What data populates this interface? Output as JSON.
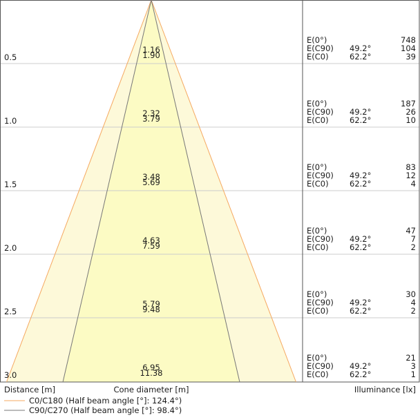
{
  "chart_data": {
    "type": "cone-diagram",
    "distances": [
      "0.5",
      "1.0",
      "1.5",
      "2.0",
      "2.5",
      "3.0"
    ],
    "cone_diameters": [
      {
        "c0": "1.16",
        "c90": "1.90"
      },
      {
        "c0": "2.32",
        "c90": "3.79"
      },
      {
        "c0": "3.48",
        "c90": "5.69"
      },
      {
        "c0": "4.63",
        "c90": "7.59"
      },
      {
        "c0": "5.79",
        "c90": "9.48"
      },
      {
        "c0": "6.95",
        "c90": "11.38"
      }
    ],
    "illuminance": [
      {
        "e0": "748",
        "e90": "104",
        "ec0": "39"
      },
      {
        "e0": "187",
        "e90": "26",
        "ec0": "10"
      },
      {
        "e0": "83",
        "e90": "12",
        "ec0": "4"
      },
      {
        "e0": "47",
        "e90": "7",
        "ec0": "2"
      },
      {
        "e0": "30",
        "e90": "4",
        "ec0": "2"
      },
      {
        "e0": "21",
        "e90": "3",
        "ec0": "1"
      }
    ],
    "row_labels": {
      "e0": "E(0°)",
      "e90": "E(C90)",
      "ec0": "E(C0)"
    },
    "angles": {
      "c90": "49.2°",
      "c0": "62.2°"
    },
    "half_beam_angle_deg": {
      "c0_c180": 124.4,
      "c90_c270": 98.4
    },
    "xlabel_left": "Distance [m]",
    "xlabel_center": "Cone diameter [m]",
    "xlabel_right": "Illuminance [lx]",
    "legend": [
      {
        "label": "C0/C180 (Half beam angle [°]: 124.4°)",
        "color": "#f5a860"
      },
      {
        "label": "C90/C270 (Half beam angle [°]: 98.4°)",
        "color": "#777777"
      }
    ],
    "colors": {
      "outer_fill": "#fdf9d9",
      "inner_fill": "#fcfbc4",
      "c0_line": "#f5a860",
      "c90_line": "#777777",
      "grid": "#cccccc",
      "frame": "#555555"
    }
  }
}
